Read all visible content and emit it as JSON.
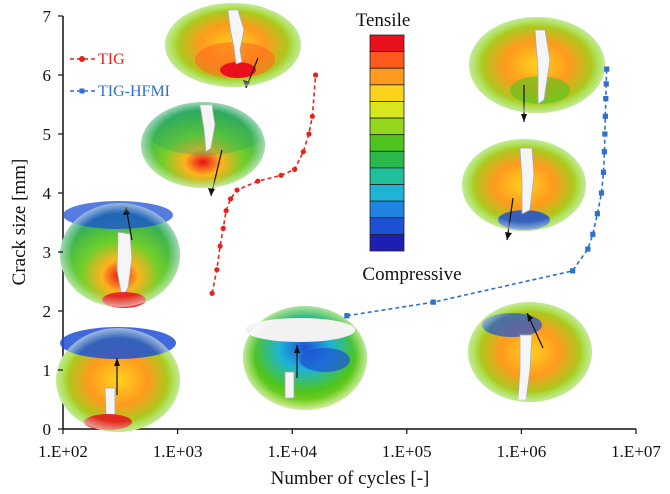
{
  "chart_data": {
    "type": "scatter",
    "title": "",
    "xlabel": "Number of cycles [-]",
    "ylabel": "Crack size [mm]",
    "x_scale": "log",
    "xlim": [
      100,
      10000000
    ],
    "ylim": [
      0,
      7
    ],
    "x_ticks": [
      100,
      1000,
      10000,
      100000,
      1000000,
      10000000
    ],
    "x_tick_labels": [
      "1.E+02",
      "1.E+03",
      "1.E+04",
      "1.E+05",
      "1.E+06",
      "1.E+07"
    ],
    "y_ticks": [
      0,
      1,
      2,
      3,
      4,
      5,
      6,
      7
    ],
    "y_tick_labels": [
      "0",
      "1",
      "2",
      "3",
      "4",
      "5",
      "6",
      "7"
    ],
    "grid": false,
    "legend_position": "top-left",
    "series": [
      {
        "name": "TIG",
        "color": "#e8211d",
        "marker": "circle",
        "line": "dashed",
        "points": [
          [
            2000,
            2.3
          ],
          [
            2200,
            2.7
          ],
          [
            2350,
            3.1
          ],
          [
            2500,
            3.4
          ],
          [
            2650,
            3.7
          ],
          [
            2900,
            3.9
          ],
          [
            3300,
            4.05
          ],
          [
            5000,
            4.2
          ],
          [
            8000,
            4.3
          ],
          [
            10500,
            4.4
          ],
          [
            12500,
            4.7
          ],
          [
            14000,
            5.0
          ],
          [
            15000,
            5.3
          ],
          [
            16000,
            6.0
          ]
        ]
      },
      {
        "name": "TIG-HFMI",
        "color": "#2e6fd0",
        "marker": "square",
        "line": "dashed",
        "points": [
          [
            30000,
            1.92
          ],
          [
            170000,
            2.15
          ],
          [
            2800000,
            2.68
          ],
          [
            3800000,
            3.05
          ],
          [
            4200000,
            3.3
          ],
          [
            4600000,
            3.65
          ],
          [
            5000000,
            4.0
          ],
          [
            5200000,
            4.35
          ],
          [
            5300000,
            4.7
          ],
          [
            5350000,
            5.0
          ],
          [
            5400000,
            5.3
          ],
          [
            5450000,
            5.6
          ],
          [
            5500000,
            5.85
          ],
          [
            5550000,
            6.1
          ]
        ]
      }
    ],
    "color_scale": {
      "top_label": "Tensile",
      "bottom_label": "Compressive",
      "colors": [
        "#e8101c",
        "#ff5a1e",
        "#ff9a1e",
        "#ffd21e",
        "#d8e61e",
        "#94d61e",
        "#4fc41e",
        "#2ab84a",
        "#1ebf9a",
        "#1eb4d6",
        "#1e84e0",
        "#1e50d6",
        "#1e1eb4"
      ]
    }
  }
}
